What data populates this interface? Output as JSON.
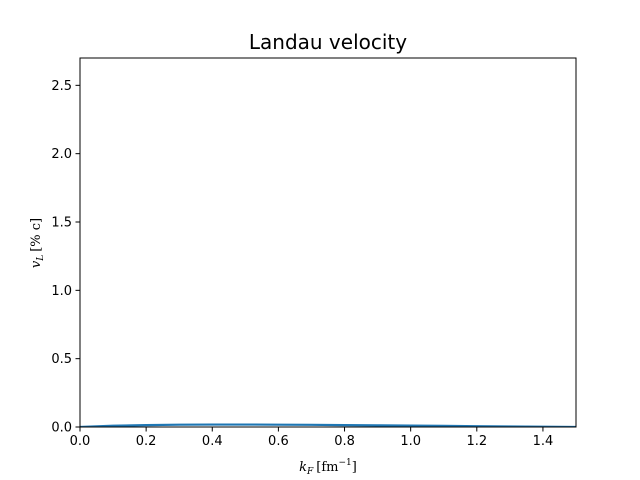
{
  "chart_data": {
    "type": "line",
    "title": "Landau velocity",
    "xlabel": {
      "base": "k",
      "sub": "F",
      "bracket": "[fm",
      "sup": "−1",
      "close": "]"
    },
    "ylabel": {
      "base": "v",
      "sub": "L",
      "bracket": "[% c]"
    },
    "xlim": [
      0.0,
      1.5
    ],
    "ylim": [
      0.0,
      2.7
    ],
    "xticks": [
      0.0,
      0.2,
      0.4,
      0.6,
      0.8,
      1.0,
      1.2,
      1.4
    ],
    "xtick_labels": [
      "0.0",
      "0.2",
      "0.4",
      "0.6",
      "0.8",
      "1.0",
      "1.2",
      "1.4"
    ],
    "yticks": [
      0.0,
      0.5,
      1.0,
      1.5,
      2.0,
      2.5
    ],
    "ytick_labels": [
      "0.0",
      "0.5",
      "1.0",
      "1.5",
      "2.0",
      "2.5"
    ],
    "grid": false,
    "series": [
      {
        "color": "#1f77b4",
        "x": [
          0.0,
          0.1,
          0.2,
          0.3,
          0.4,
          0.5,
          0.6,
          0.7,
          0.8,
          0.9,
          1.0,
          1.1,
          1.2,
          1.3,
          1.4,
          1.5
        ],
        "y": [
          0.0,
          0.009,
          0.014,
          0.017,
          0.018,
          0.018,
          0.017,
          0.016,
          0.014,
          0.012,
          0.01,
          0.008,
          0.006,
          0.004,
          0.002,
          0.0
        ]
      }
    ]
  }
}
